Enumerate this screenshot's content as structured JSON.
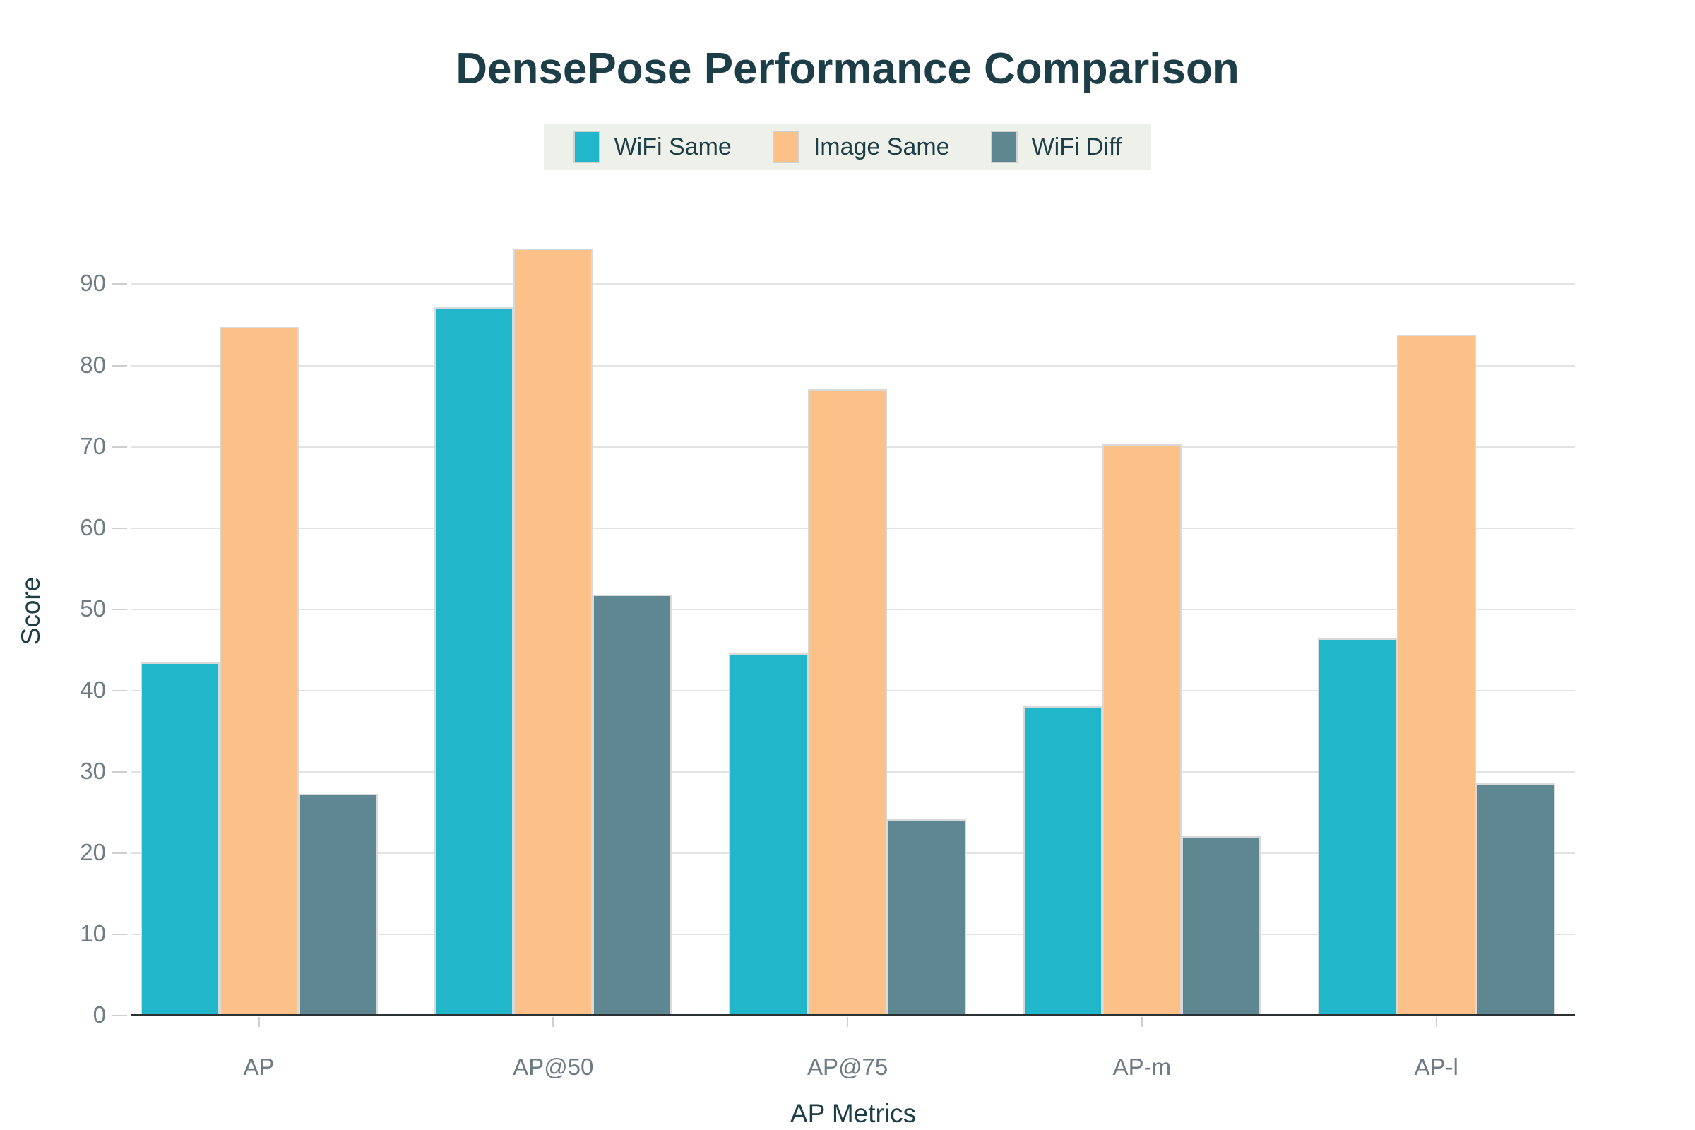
{
  "title": "DensePose Performance Comparison",
  "chart_data": {
    "type": "bar",
    "title": "DensePose Performance Comparison",
    "categories": [
      "AP",
      "AP@50",
      "AP@75",
      "AP-m",
      "AP-l"
    ],
    "series": [
      {
        "name": "WiFi Same",
        "color": "#22b6ca",
        "values": [
          43.5,
          87.2,
          44.6,
          38.1,
          46.4
        ]
      },
      {
        "name": "Image Same",
        "color": "#fcc188",
        "values": [
          84.7,
          94.4,
          77.1,
          70.3,
          83.8
        ]
      },
      {
        "name": "WiFi Diff",
        "color": "#5e8792",
        "values": [
          27.3,
          51.8,
          24.2,
          22.1,
          28.6
        ]
      }
    ],
    "xlabel": "AP Metrics",
    "ylabel": "Score",
    "ylim": [
      0,
      96.3
    ],
    "yticks": [
      0,
      10,
      20,
      30,
      40,
      50,
      60,
      70,
      80,
      90
    ],
    "grid": true,
    "legend_position": "top-center"
  },
  "colors": {
    "title_text": "#1d3e46",
    "axis_title_text": "#1d3e46",
    "tick_text": "#6d7c84",
    "gridline": "#e3e3e3",
    "tick_mark": "#cfcfcf",
    "baseline": "#2b3033",
    "legend_background": "#eef0ea",
    "bar_border": "#d9d9d9",
    "background": "#ffffff"
  }
}
